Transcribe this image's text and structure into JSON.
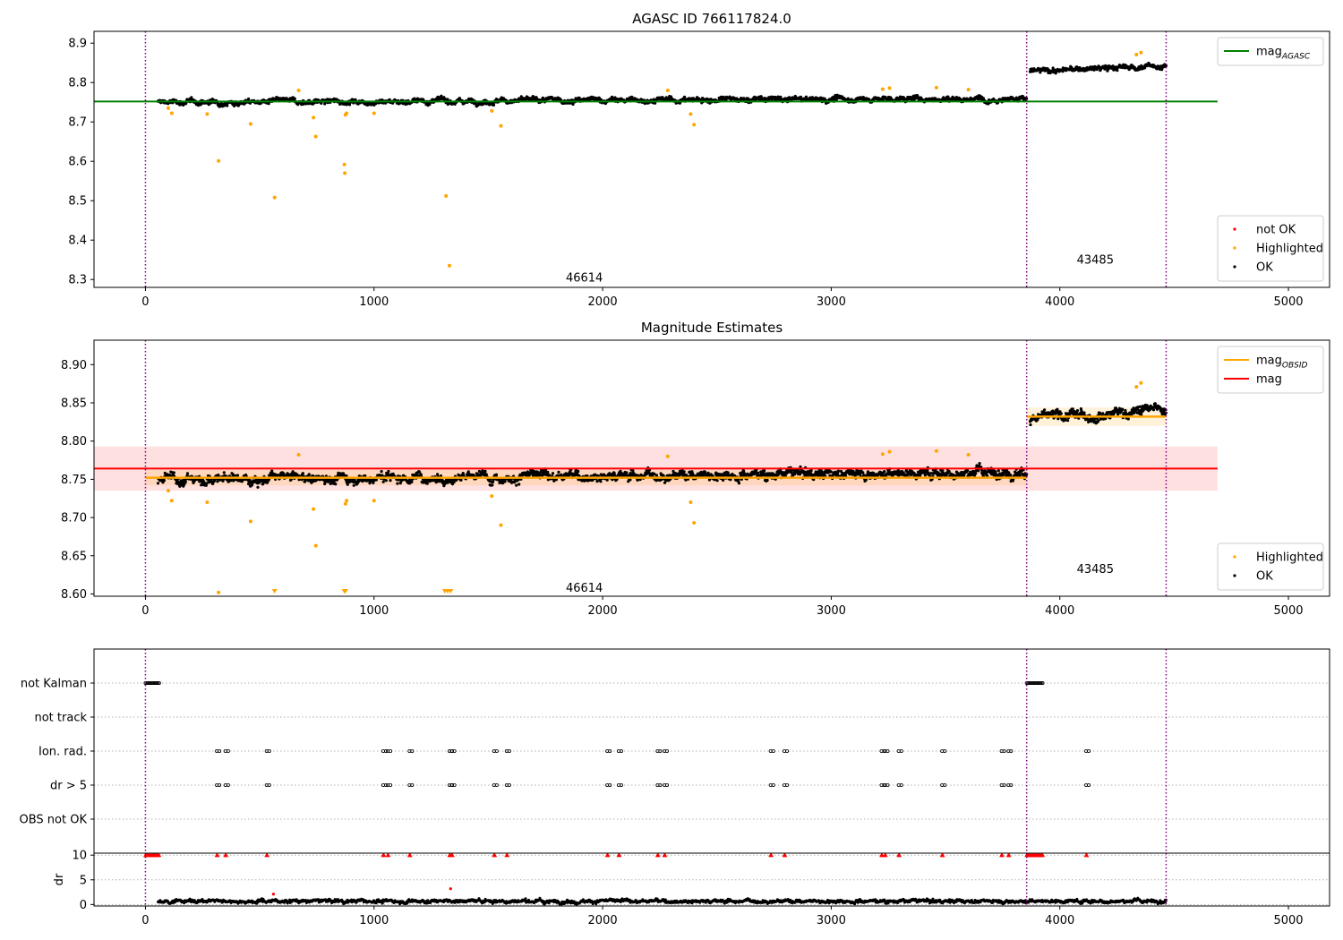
{
  "chart_data": [
    {
      "type": "scatter",
      "title": "AGASC ID 766117824.0",
      "xlabel": "",
      "ylabel": "",
      "xlim": [
        -225,
        5180
      ],
      "ylim": [
        8.28,
        8.93
      ],
      "xticks": [
        0,
        1000,
        2000,
        3000,
        4000,
        5000
      ],
      "yticks": [
        8.3,
        8.4,
        8.5,
        8.6,
        8.7,
        8.8,
        8.9
      ],
      "ytick_decimals": 1,
      "grid": false,
      "legend_top": {
        "position": "upper right",
        "entries": [
          {
            "label": "mag",
            "sub": "AGASC",
            "color": "#008000",
            "kind": "line"
          }
        ]
      },
      "legend_bottom": {
        "position": "lower right",
        "entries": [
          {
            "label": "not OK",
            "color": "#ff0000",
            "kind": "point"
          },
          {
            "label": "Highlighted",
            "color": "#ffa500",
            "kind": "point"
          },
          {
            "label": "OK",
            "color": "#000000",
            "kind": "point"
          }
        ]
      },
      "reference_lines": [
        {
          "name": "mag_AGASC",
          "y": 8.752,
          "x": [
            -225,
            4690
          ],
          "color": "#008000"
        }
      ],
      "observation_boundaries": [
        0,
        3855,
        4465
      ],
      "observations": [
        {
          "obsid": "46614",
          "x_range": [
            55,
            3855
          ],
          "label_x": 1920,
          "label_y": 8.305,
          "baseline": 8.75,
          "trend": 0.01,
          "noise": 0.009
        },
        {
          "obsid": "43485",
          "x_range": [
            3870,
            4465
          ],
          "label_x": 4155,
          "label_y": 8.35,
          "baseline": 8.828,
          "trend": 0.015,
          "noise": 0.009
        }
      ],
      "highlighted_points": [
        {
          "x": 100,
          "y": 8.735
        },
        {
          "x": 115,
          "y": 8.722
        },
        {
          "x": 270,
          "y": 8.72
        },
        {
          "x": 320,
          "y": 8.601
        },
        {
          "x": 460,
          "y": 8.695
        },
        {
          "x": 565,
          "y": 8.508
        },
        {
          "x": 670,
          "y": 8.78
        },
        {
          "x": 735,
          "y": 8.711
        },
        {
          "x": 745,
          "y": 8.663
        },
        {
          "x": 870,
          "y": 8.592
        },
        {
          "x": 872,
          "y": 8.57
        },
        {
          "x": 875,
          "y": 8.718
        },
        {
          "x": 880,
          "y": 8.722
        },
        {
          "x": 1000,
          "y": 8.722
        },
        {
          "x": 1315,
          "y": 8.512
        },
        {
          "x": 1330,
          "y": 8.335
        },
        {
          "x": 1515,
          "y": 8.728
        },
        {
          "x": 1555,
          "y": 8.69
        },
        {
          "x": 2285,
          "y": 8.78
        },
        {
          "x": 2385,
          "y": 8.72
        },
        {
          "x": 2400,
          "y": 8.693
        },
        {
          "x": 3225,
          "y": 8.783
        },
        {
          "x": 3255,
          "y": 8.786
        },
        {
          "x": 3460,
          "y": 8.787
        },
        {
          "x": 3600,
          "y": 8.782
        },
        {
          "x": 4335,
          "y": 8.871
        },
        {
          "x": 4355,
          "y": 8.876
        }
      ],
      "not_ok_points": []
    },
    {
      "type": "scatter",
      "title": "Magnitude Estimates",
      "xlabel": "",
      "ylabel": "",
      "xlim": [
        -225,
        5180
      ],
      "ylim": [
        8.597,
        8.932
      ],
      "xticks": [
        0,
        1000,
        2000,
        3000,
        4000,
        5000
      ],
      "yticks": [
        8.6,
        8.65,
        8.7,
        8.75,
        8.8,
        8.85,
        8.9
      ],
      "ytick_decimals": 2,
      "grid": false,
      "legend_top": {
        "position": "upper right",
        "entries": [
          {
            "label": "mag",
            "sub": "OBSID",
            "color": "#ffa500",
            "kind": "line"
          },
          {
            "label": "mag",
            "sub": "",
            "color": "#ff0000",
            "kind": "line"
          }
        ]
      },
      "legend_bottom": {
        "position": "lower right",
        "entries": [
          {
            "label": "Highlighted",
            "color": "#ffa500",
            "kind": "point"
          },
          {
            "label": "OK",
            "color": "#000000",
            "kind": "point"
          }
        ]
      },
      "mag_band": {
        "y": 8.764,
        "low": 8.735,
        "high": 8.793,
        "x": [
          -225,
          4690
        ],
        "color": "#ff0000"
      },
      "obsid_mags": [
        {
          "obsid": "46614",
          "x": [
            0,
            3855
          ],
          "y": 8.752,
          "low": 8.742,
          "high": 8.762
        },
        {
          "obsid": "43485",
          "x": [
            3855,
            4465
          ],
          "y": 8.832,
          "low": 8.82,
          "high": 8.844
        }
      ],
      "observation_boundaries": [
        0,
        3855,
        4465
      ],
      "observations": [
        {
          "obsid": "46614",
          "x_range": [
            55,
            3855
          ],
          "label_x": 1920,
          "label_y": 8.608,
          "baseline": 8.75,
          "trend": 0.01,
          "noise": 0.009
        },
        {
          "obsid": "43485",
          "x_range": [
            3870,
            4465
          ],
          "label_x": 4155,
          "label_y": 8.633,
          "baseline": 8.828,
          "trend": 0.015,
          "noise": 0.009
        }
      ],
      "highlighted_points": [
        {
          "x": 100,
          "y": 8.735
        },
        {
          "x": 115,
          "y": 8.722
        },
        {
          "x": 270,
          "y": 8.72
        },
        {
          "x": 320,
          "y": 8.602
        },
        {
          "x": 460,
          "y": 8.695
        },
        {
          "x": 670,
          "y": 8.782
        },
        {
          "x": 735,
          "y": 8.711
        },
        {
          "x": 745,
          "y": 8.663
        },
        {
          "x": 875,
          "y": 8.718
        },
        {
          "x": 880,
          "y": 8.722
        },
        {
          "x": 1000,
          "y": 8.722
        },
        {
          "x": 1515,
          "y": 8.728
        },
        {
          "x": 1555,
          "y": 8.69
        },
        {
          "x": 2285,
          "y": 8.78
        },
        {
          "x": 2385,
          "y": 8.72
        },
        {
          "x": 2400,
          "y": 8.693
        },
        {
          "x": 3225,
          "y": 8.783
        },
        {
          "x": 3255,
          "y": 8.786
        },
        {
          "x": 3460,
          "y": 8.787
        },
        {
          "x": 3600,
          "y": 8.782
        },
        {
          "x": 4335,
          "y": 8.871
        },
        {
          "x": 4355,
          "y": 8.876
        }
      ],
      "clipped_low_points": [
        {
          "x": 565
        },
        {
          "x": 870
        },
        {
          "x": 875
        },
        {
          "x": 1310
        },
        {
          "x": 1322
        },
        {
          "x": 1335
        }
      ]
    },
    {
      "type": "scatter",
      "title": "",
      "xlabel": "",
      "xlim": [
        -225,
        5180
      ],
      "xticks": [
        0,
        1000,
        2000,
        3000,
        4000,
        5000
      ],
      "flag_rows": [
        "not Kalman",
        "not track",
        "Ion. rad.",
        "dr > 5",
        "OBS not OK"
      ],
      "flag_events": {
        "not Kalman": [
          [
            0,
            60
          ],
          [
            3855,
            3925
          ]
        ],
        "not track": [],
        "Ion. rad.": [
          312,
          350,
          530,
          1040,
          1060,
          1155,
          1330,
          1340,
          1525,
          1580,
          2020,
          2070,
          2240,
          2270,
          2735,
          2795,
          3220,
          3235,
          3295,
          3485,
          3745,
          3775,
          4115
        ],
        "dr > 5": [
          312,
          350,
          530,
          1040,
          1060,
          1155,
          1330,
          1340,
          1525,
          1580,
          2020,
          2070,
          2240,
          2270,
          2735,
          2795,
          3220,
          3235,
          3295,
          3485,
          3745,
          3775,
          4115
        ],
        "OBS not OK": []
      },
      "observation_boundaries": [
        0,
        3855,
        4465
      ]
    },
    {
      "type": "scatter",
      "title": "",
      "xlabel": "",
      "ylabel": "dr",
      "xlim": [
        -225,
        5180
      ],
      "ylim": [
        -0.3,
        10.4
      ],
      "xticks": [
        0,
        1000,
        2000,
        3000,
        4000,
        5000
      ],
      "yticks": [
        0,
        5,
        10
      ],
      "dr_series": {
        "x_range": [
          55,
          4465
        ],
        "typical": 0.7,
        "noise": 0.45
      },
      "dr_outliers": [
        {
          "x": 1335,
          "y": 3.2
        },
        {
          "x": 560,
          "y": 2.1
        }
      ],
      "dr_clipped_events": [
        [
          0,
          60
        ],
        [
          3855,
          3925
        ],
        312,
        350,
        530,
        1040,
        1060,
        1155,
        1330,
        1340,
        1525,
        1580,
        2020,
        2070,
        2240,
        2270,
        2735,
        2795,
        3220,
        3235,
        3295,
        3485,
        3745,
        3775,
        4115
      ],
      "observation_boundaries": [
        0,
        3855,
        4465
      ]
    }
  ]
}
